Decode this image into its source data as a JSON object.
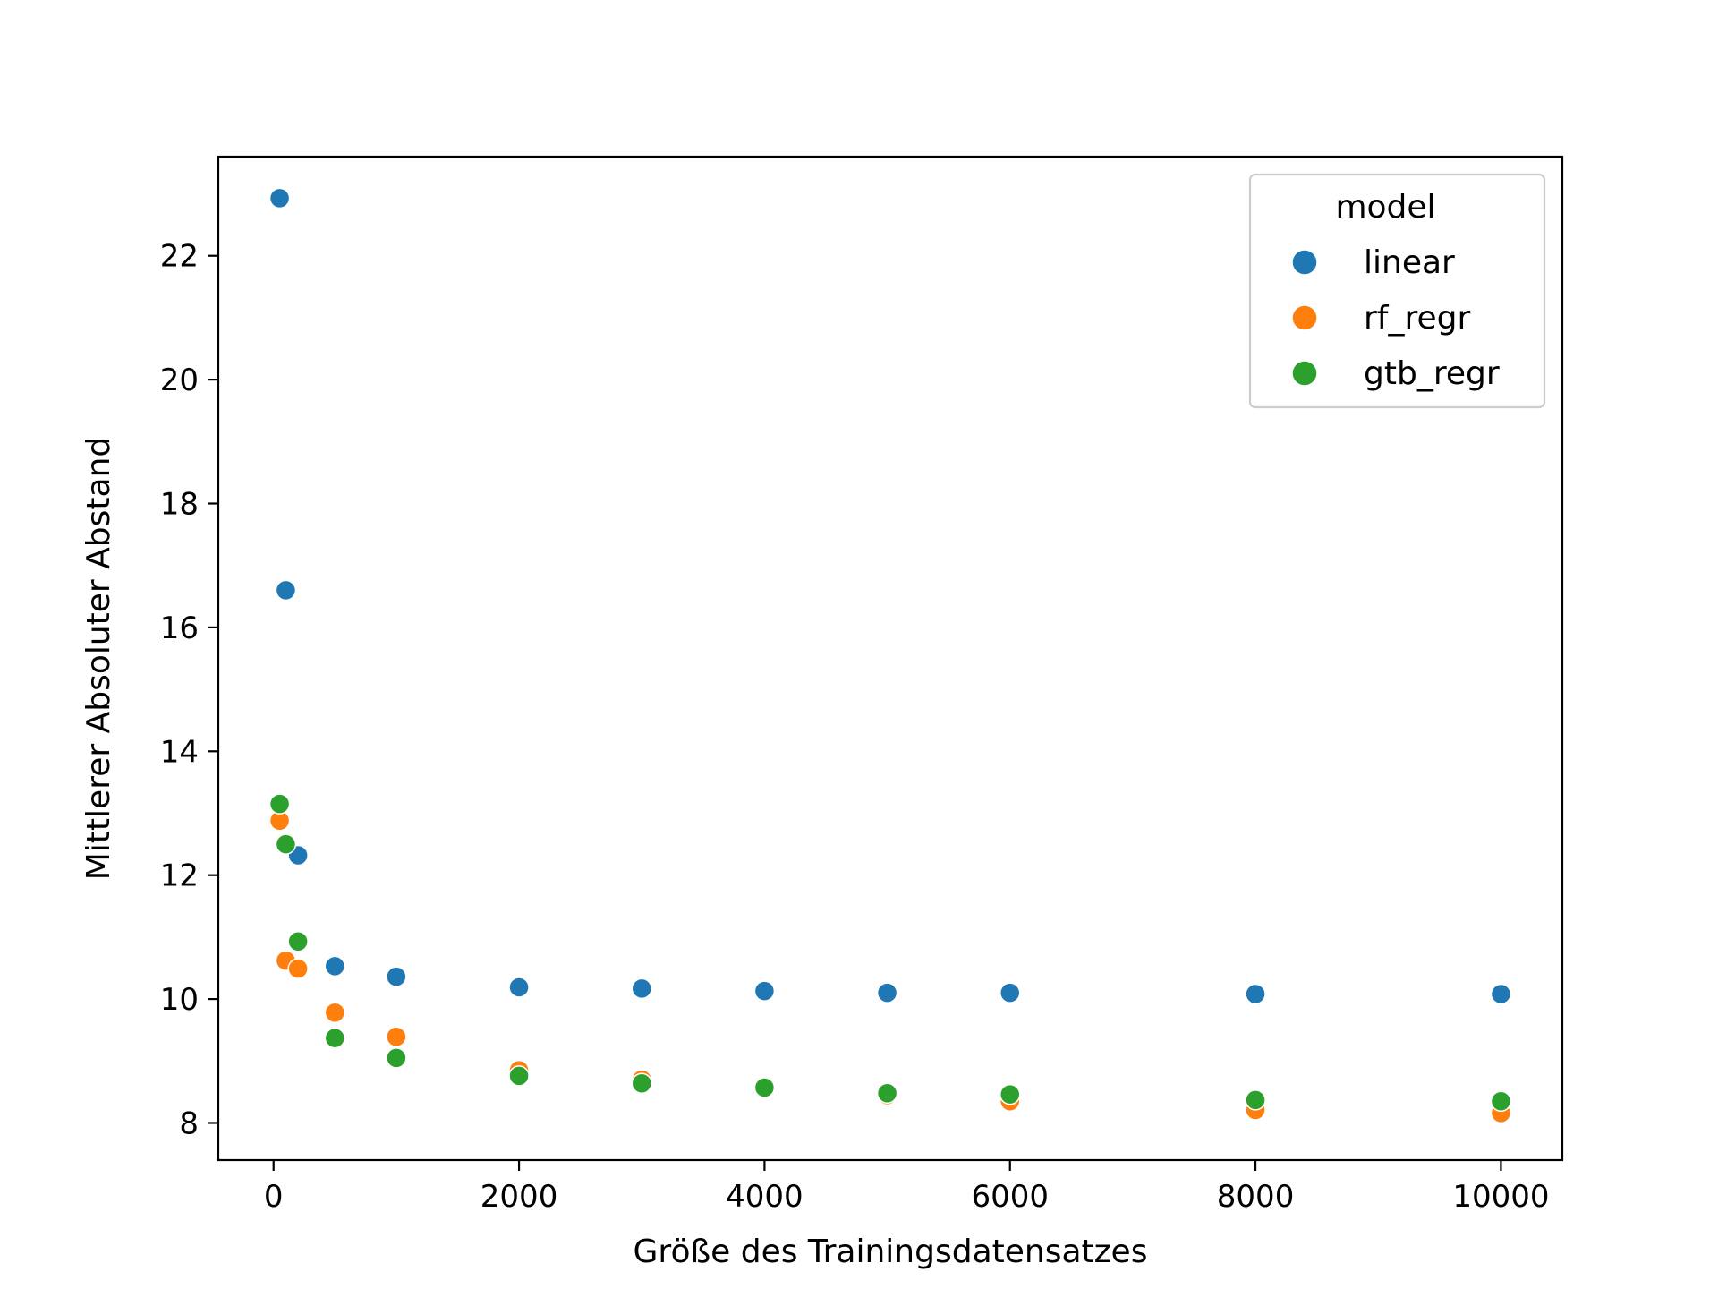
{
  "chart_data": {
    "type": "scatter",
    "title": "",
    "xlabel": "Größe des Trainingsdatensatzes",
    "ylabel": "Mittlerer Absoluter Abstand",
    "xlim": [
      -450,
      10500
    ],
    "ylim": [
      7.4,
      23.6
    ],
    "xticks": [
      0,
      2000,
      4000,
      6000,
      8000,
      10000
    ],
    "xtick_labels": [
      "0",
      "2000",
      "4000",
      "6000",
      "8000",
      "10000"
    ],
    "yticks": [
      8,
      10,
      12,
      14,
      16,
      18,
      20,
      22
    ],
    "ytick_labels": [
      "8",
      "10",
      "12",
      "14",
      "16",
      "18",
      "20",
      "22"
    ],
    "grid": false,
    "legend": {
      "title": "model",
      "position": "top-right"
    },
    "x": [
      50,
      100,
      200,
      500,
      1000,
      2000,
      3000,
      4000,
      5000,
      6000,
      8000,
      10000
    ],
    "series": [
      {
        "name": "linear",
        "color": "#1f77b4",
        "values": [
          22.93,
          16.6,
          12.32,
          10.53,
          10.36,
          10.19,
          10.17,
          10.13,
          10.1,
          10.1,
          10.08,
          10.08
        ]
      },
      {
        "name": "rf_regr",
        "color": "#ff7f0e",
        "values": [
          12.88,
          10.62,
          10.49,
          9.78,
          9.39,
          8.85,
          8.7,
          8.56,
          8.45,
          8.35,
          8.21,
          8.16
        ]
      },
      {
        "name": "gtb_regr",
        "color": "#2ca02c",
        "values": [
          13.15,
          12.5,
          10.93,
          9.37,
          9.05,
          8.76,
          8.64,
          8.57,
          8.48,
          8.46,
          8.37,
          8.35
        ]
      }
    ]
  }
}
